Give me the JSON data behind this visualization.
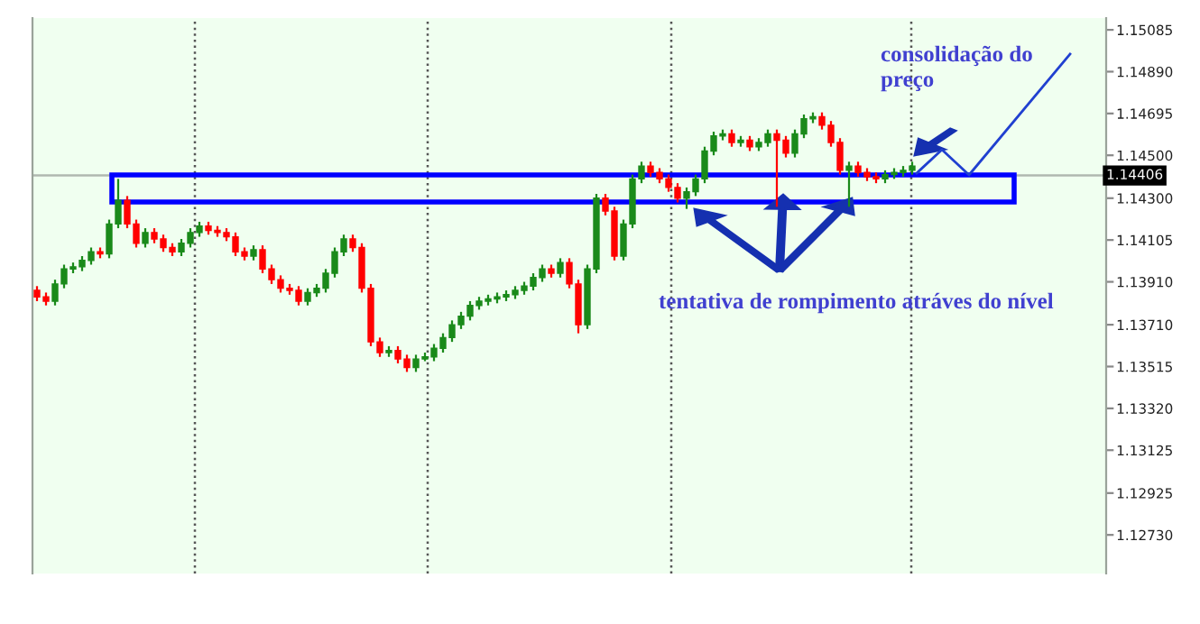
{
  "chart_data": {
    "type": "candlestick",
    "categories": [
      null,
      null,
      null,
      null,
      null,
      null,
      null,
      null,
      null,
      null,
      null,
      null,
      null,
      null,
      null,
      null,
      null,
      null,
      null,
      null,
      null,
      null,
      null,
      null,
      null,
      null,
      null,
      null,
      null,
      null,
      null,
      null,
      null,
      null,
      null,
      null,
      null,
      null,
      null,
      null,
      null,
      null,
      null,
      null,
      null,
      null,
      null,
      null,
      null,
      null,
      null,
      null,
      null,
      null,
      null,
      null,
      null,
      null,
      null,
      null,
      null,
      null,
      null,
      null,
      null,
      null,
      null,
      null,
      null,
      null,
      null,
      null,
      null,
      null,
      null,
      null,
      null,
      null,
      null,
      null,
      null,
      null,
      null,
      null,
      null,
      null,
      null,
      null,
      null,
      null,
      null,
      null,
      null,
      null,
      null,
      null,
      null,
      null,
      null,
      null,
      null,
      null,
      null,
      null,
      null,
      null,
      null,
      null,
      null,
      null,
      null,
      null,
      null,
      null,
      null,
      null,
      null,
      null,
      null
    ],
    "ohlc": [
      [
        1.1387,
        1.1389,
        1.1382,
        1.1384
      ],
      [
        1.1384,
        1.1386,
        1.138,
        1.1382
      ],
      [
        1.1382,
        1.1392,
        1.138,
        1.139
      ],
      [
        1.139,
        1.1399,
        1.1388,
        1.1397
      ],
      [
        1.1397,
        1.14,
        1.1395,
        1.1398
      ],
      [
        1.1398,
        1.1403,
        1.1396,
        1.1401
      ],
      [
        1.1401,
        1.1407,
        1.1399,
        1.1405
      ],
      [
        1.1405,
        1.1407,
        1.1402,
        1.1404
      ],
      [
        1.1404,
        1.142,
        1.1402,
        1.1418
      ],
      [
        1.1418,
        1.1439,
        1.1416,
        1.1429
      ],
      [
        1.1429,
        1.1431,
        1.1416,
        1.1418
      ],
      [
        1.1418,
        1.142,
        1.1407,
        1.1409
      ],
      [
        1.1409,
        1.1416,
        1.1407,
        1.1414
      ],
      [
        1.1414,
        1.1416,
        1.1409,
        1.1411
      ],
      [
        1.1411,
        1.1413,
        1.1405,
        1.1407
      ],
      [
        1.1407,
        1.1409,
        1.1403,
        1.1405
      ],
      [
        1.1405,
        1.1411,
        1.1403,
        1.1409
      ],
      [
        1.1409,
        1.1416,
        1.1407,
        1.1414
      ],
      [
        1.1414,
        1.1419,
        1.1412,
        1.1417
      ],
      [
        1.1417,
        1.1419,
        1.1413,
        1.1415
      ],
      [
        1.1415,
        1.1417,
        1.1412,
        1.1414
      ],
      [
        1.1414,
        1.1416,
        1.141,
        1.1412
      ],
      [
        1.1412,
        1.1414,
        1.1403,
        1.1405
      ],
      [
        1.1405,
        1.1407,
        1.1401,
        1.1403
      ],
      [
        1.1403,
        1.1408,
        1.1401,
        1.1406
      ],
      [
        1.1406,
        1.1408,
        1.1395,
        1.1397
      ],
      [
        1.1397,
        1.1399,
        1.139,
        1.1392
      ],
      [
        1.1392,
        1.1394,
        1.1386,
        1.1388
      ],
      [
        1.1388,
        1.139,
        1.1385,
        1.1387
      ],
      [
        1.1387,
        1.1389,
        1.138,
        1.1382
      ],
      [
        1.1382,
        1.1388,
        1.138,
        1.1386
      ],
      [
        1.1386,
        1.139,
        1.1384,
        1.1388
      ],
      [
        1.1388,
        1.1397,
        1.1386,
        1.1395
      ],
      [
        1.1395,
        1.1407,
        1.1393,
        1.1405
      ],
      [
        1.1405,
        1.1413,
        1.1403,
        1.1411
      ],
      [
        1.1411,
        1.1413,
        1.1405,
        1.1407
      ],
      [
        1.1407,
        1.1409,
        1.1386,
        1.1388
      ],
      [
        1.1388,
        1.139,
        1.1361,
        1.1363
      ],
      [
        1.1363,
        1.1365,
        1.1356,
        1.1358
      ],
      [
        1.1358,
        1.1361,
        1.1356,
        1.1359
      ],
      [
        1.1359,
        1.1361,
        1.1353,
        1.1355
      ],
      [
        1.1355,
        1.1357,
        1.1349,
        1.1351
      ],
      [
        1.1351,
        1.1357,
        1.1349,
        1.1355
      ],
      [
        1.1355,
        1.1358,
        1.1354,
        1.1356
      ],
      [
        1.1356,
        1.1362,
        1.1354,
        1.136
      ],
      [
        1.136,
        1.1367,
        1.1358,
        1.1365
      ],
      [
        1.1365,
        1.1373,
        1.1363,
        1.1371
      ],
      [
        1.1371,
        1.1377,
        1.1369,
        1.1375
      ],
      [
        1.1375,
        1.1382,
        1.1373,
        1.138
      ],
      [
        1.138,
        1.1384,
        1.1378,
        1.1382
      ],
      [
        1.1382,
        1.1385,
        1.138,
        1.1383
      ],
      [
        1.1383,
        1.1386,
        1.1381,
        1.1384
      ],
      [
        1.1384,
        1.1387,
        1.1382,
        1.1385
      ],
      [
        1.1385,
        1.1389,
        1.1383,
        1.1387
      ],
      [
        1.1387,
        1.1391,
        1.1385,
        1.1389
      ],
      [
        1.1389,
        1.1395,
        1.1387,
        1.1393
      ],
      [
        1.1393,
        1.1399,
        1.1391,
        1.1397
      ],
      [
        1.1397,
        1.1399,
        1.1393,
        1.1395
      ],
      [
        1.1395,
        1.1402,
        1.1393,
        1.14
      ],
      [
        1.14,
        1.1402,
        1.1388,
        1.139
      ],
      [
        1.139,
        1.1392,
        1.1367,
        1.1371
      ],
      [
        1.1371,
        1.1399,
        1.1369,
        1.1397
      ],
      [
        1.1397,
        1.1432,
        1.1395,
        1.143
      ],
      [
        1.143,
        1.1432,
        1.1422,
        1.1424
      ],
      [
        1.1424,
        1.1426,
        1.1401,
        1.1403
      ],
      [
        1.1403,
        1.142,
        1.1401,
        1.1418
      ],
      [
        1.1418,
        1.1441,
        1.1416,
        1.1439
      ],
      [
        1.1439,
        1.1447,
        1.1437,
        1.1445
      ],
      [
        1.1445,
        1.1447,
        1.144,
        1.1442
      ],
      [
        1.1442,
        1.1444,
        1.1437,
        1.1439
      ],
      [
        1.1439,
        1.1441,
        1.1433,
        1.1435
      ],
      [
        1.1435,
        1.1437,
        1.1428,
        1.143
      ],
      [
        1.143,
        1.1435,
        1.1425,
        1.1433
      ],
      [
        1.1433,
        1.1441,
        1.1431,
        1.1439
      ],
      [
        1.1439,
        1.1454,
        1.1437,
        1.1452
      ],
      [
        1.1452,
        1.1461,
        1.145,
        1.1459
      ],
      [
        1.1459,
        1.1462,
        1.1457,
        1.146
      ],
      [
        1.146,
        1.1462,
        1.1454,
        1.1456
      ],
      [
        1.1456,
        1.1459,
        1.1454,
        1.1457
      ],
      [
        1.1457,
        1.1459,
        1.1452,
        1.1454
      ],
      [
        1.1454,
        1.1458,
        1.1452,
        1.1456
      ],
      [
        1.1456,
        1.1462,
        1.1454,
        1.146
      ],
      [
        1.146,
        1.1462,
        1.1426,
        1.1457
      ],
      [
        1.1457,
        1.1459,
        1.1449,
        1.1451
      ],
      [
        1.1451,
        1.1462,
        1.1449,
        1.146
      ],
      [
        1.146,
        1.1469,
        1.1458,
        1.1467
      ],
      [
        1.1467,
        1.147,
        1.1465,
        1.1468
      ],
      [
        1.1468,
        1.147,
        1.1462,
        1.1464
      ],
      [
        1.1464,
        1.1466,
        1.1454,
        1.1456
      ],
      [
        1.1456,
        1.1458,
        1.1441,
        1.1443
      ],
      [
        1.1443,
        1.1447,
        1.1426,
        1.1445
      ],
      [
        1.1445,
        1.1447,
        1.144,
        1.1442
      ],
      [
        1.1442,
        1.1444,
        1.1438,
        1.144
      ],
      [
        1.144,
        1.1442,
        1.1437,
        1.1439
      ],
      [
        1.1439,
        1.1443,
        1.1437,
        1.1441
      ],
      [
        1.1441,
        1.1444,
        1.1439,
        1.1442
      ],
      [
        1.1442,
        1.1445,
        1.144,
        1.1443
      ],
      [
        1.1443,
        1.1447,
        1.1441,
        1.1445
      ],
      null,
      null,
      null,
      null,
      null,
      null,
      null,
      null,
      null,
      null,
      null,
      null,
      null,
      null,
      null,
      null,
      null,
      null,
      null,
      null,
      null
    ],
    "ylim": [
      1.1255,
      1.1514
    ],
    "yticks": [
      1.15085,
      {
        "value": 1.1489,
        "label": "1.14890"
      },
      {
        "value": 1.14695,
        "label": "1.14695"
      },
      {
        "value": 1.145,
        "label": "1.14500"
      },
      {
        "value": 1.143,
        "label": "1.14300"
      },
      1.14105,
      {
        "value": 1.1391,
        "label": "1.13910"
      },
      {
        "value": 1.1371,
        "label": "1.13710"
      },
      1.13515,
      {
        "value": 1.1332,
        "label": "1.13320"
      },
      1.13125,
      1.12925,
      {
        "value": 1.1273,
        "label": "1.12730"
      }
    ],
    "ref_lines": [
      {
        "axis": "y",
        "value": 1.14406,
        "label": "1.14406",
        "color": "#b0b8b0",
        "line_style": "solid"
      }
    ],
    "annotations": [
      "consolidação do\npreço",
      "tentativa de rompimento atráves do nível"
    ]
  }
}
